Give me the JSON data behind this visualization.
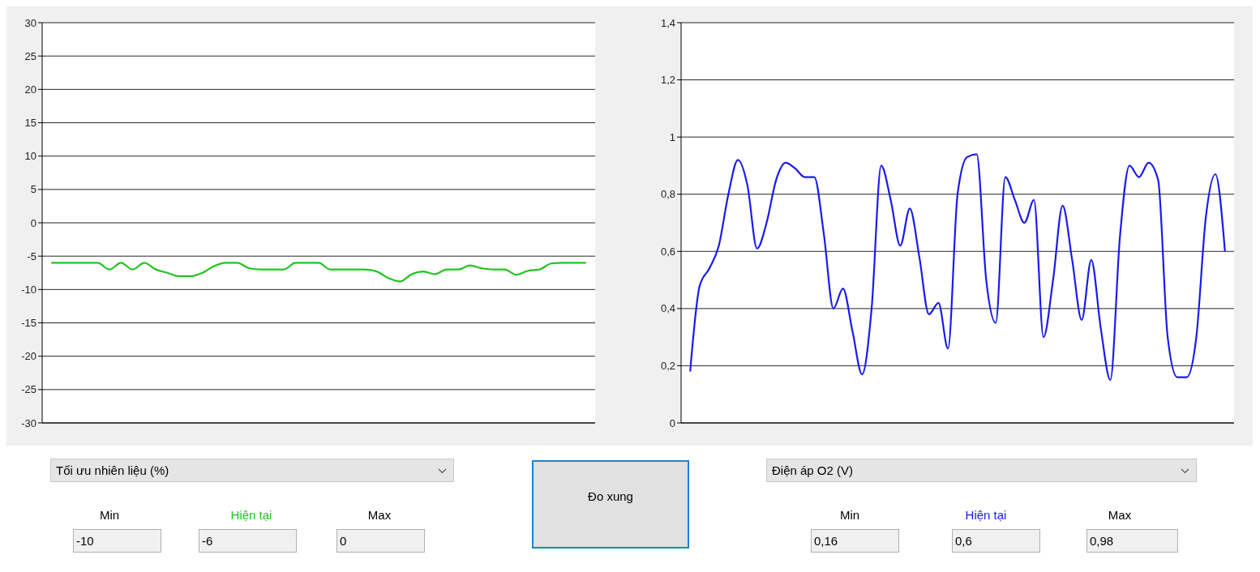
{
  "chart_data": [
    {
      "type": "line",
      "categories": [
        null,
        null,
        null,
        null,
        null,
        null,
        null,
        null,
        null,
        null,
        null,
        null,
        null,
        null,
        null,
        null,
        null,
        null,
        null,
        null,
        null,
        null,
        null,
        null,
        null,
        null,
        null,
        null,
        null,
        null,
        null,
        null,
        null,
        null,
        null,
        null,
        null,
        null,
        null,
        null,
        null,
        null,
        null,
        null,
        null,
        null,
        null
      ],
      "series": [
        {
          "color": "#22c322",
          "values": [
            -6,
            -6,
            -6,
            -6,
            -6,
            -7,
            -6,
            -7,
            -6,
            -7,
            -7.5,
            -8,
            -8,
            -7.5,
            -6.5,
            -6,
            -6,
            -6.8,
            -7,
            -7,
            -7,
            -6,
            -6,
            -6,
            -7,
            -7,
            -7,
            -7,
            -7.3,
            -8.3,
            -8.8,
            -7.7,
            -7.3,
            -7.7,
            -7,
            -7,
            -6.4,
            -6.8,
            -7,
            -7,
            -7.8,
            -7.2,
            -7,
            -6.1,
            -6,
            -6,
            -6
          ]
        }
      ],
      "ylim": [
        -30,
        30
      ],
      "yticks": [
        -30,
        -25,
        -20,
        -15,
        -10,
        -5,
        0,
        5,
        10,
        15,
        20,
        25,
        30
      ],
      "grid": "y",
      "tick_labels": "y",
      "annotations": [
        "Tối ưu nhiên liệu (%)",
        "Min",
        "Hiện tại",
        "Max",
        "-10",
        "-6",
        "0"
      ]
    },
    {
      "type": "line",
      "categories": [
        null,
        null,
        null,
        null,
        null,
        null,
        null,
        null,
        null,
        null,
        null,
        null,
        null,
        null,
        null,
        null,
        null,
        null,
        null,
        null,
        null,
        null,
        null,
        null,
        null,
        null,
        null,
        null,
        null,
        null,
        null,
        null,
        null,
        null,
        null,
        null,
        null,
        null,
        null,
        null,
        null,
        null,
        null,
        null,
        null,
        null,
        null,
        null,
        null,
        null,
        null,
        null,
        null,
        null,
        null,
        null,
        null
      ],
      "series": [
        {
          "color": "#1a1aee",
          "values": [
            0.18,
            0.48,
            0.54,
            0.62,
            0.8,
            0.92,
            0.83,
            0.61,
            0.7,
            0.85,
            0.91,
            0.89,
            0.86,
            0.86,
            0.66,
            0.4,
            0.47,
            0.32,
            0.17,
            0.4,
            0.9,
            0.78,
            0.62,
            0.75,
            0.58,
            0.38,
            0.42,
            0.26,
            0.8,
            0.93,
            0.94,
            0.5,
            0.35,
            0.86,
            0.78,
            0.7,
            0.78,
            0.3,
            0.5,
            0.76,
            0.57,
            0.36,
            0.57,
            0.33,
            0.15,
            0.65,
            0.9,
            0.86,
            0.91,
            0.85,
            0.3,
            0.16,
            0.16,
            0.3,
            0.72,
            0.87,
            0.6
          ]
        }
      ],
      "ylim": [
        0,
        1.4
      ],
      "yticks": [
        0,
        {
          "value": 0.2,
          "label": "0,2"
        },
        {
          "value": 0.4,
          "label": "0,4"
        },
        {
          "value": 0.6,
          "label": "0,6"
        },
        {
          "value": 0.8,
          "label": "0,8"
        },
        1,
        {
          "value": 1.2,
          "label": "1,2"
        },
        {
          "value": 1.4,
          "label": "1,4"
        }
      ],
      "grid": "y",
      "tick_labels": "y",
      "annotations": [
        "Điện áp O2 (V)",
        "Min",
        "Hiện tại",
        "Max",
        "0,16",
        "0,6",
        "0,98"
      ]
    },
    {
      "type": "other",
      "annotations": [
        "Đo xung"
      ]
    }
  ]
}
